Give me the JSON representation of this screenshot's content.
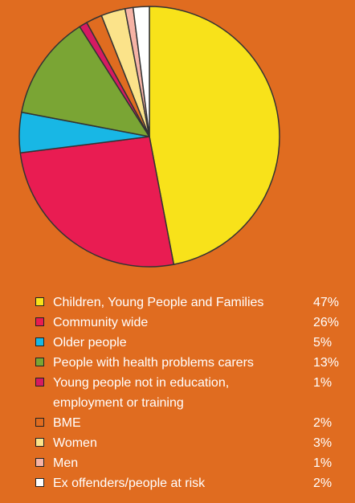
{
  "chart_data": {
    "type": "pie",
    "slices": [
      {
        "label": "Children, Young People and Families",
        "value": 47,
        "value_label": "47%",
        "color": "#f8e21a"
      },
      {
        "label": "Community wide",
        "value": 26,
        "value_label": "26%",
        "color": "#e91c52"
      },
      {
        "label": "Older people",
        "value": 5,
        "value_label": "5%",
        "color": "#18b7e5"
      },
      {
        "label": "People with health problems carers",
        "value": 13,
        "value_label": "13%",
        "color": "#7aa534"
      },
      {
        "label": "Young people not in education, employment or training",
        "value": 1,
        "value_label": "1%",
        "color": "#d61a62"
      },
      {
        "label": "BME",
        "value": 2,
        "value_label": "2%",
        "color": "#e06c20"
      },
      {
        "label": "Women",
        "value": 3,
        "value_label": "3%",
        "color": "#fbe38a"
      },
      {
        "label": "Men",
        "value": 1,
        "value_label": "1%",
        "color": "#f6b3a6"
      },
      {
        "label": "Ex offenders/people at risk",
        "value": 2,
        "value_label": "2%",
        "color": "#ffffff"
      }
    ],
    "legend_position": "bottom"
  }
}
